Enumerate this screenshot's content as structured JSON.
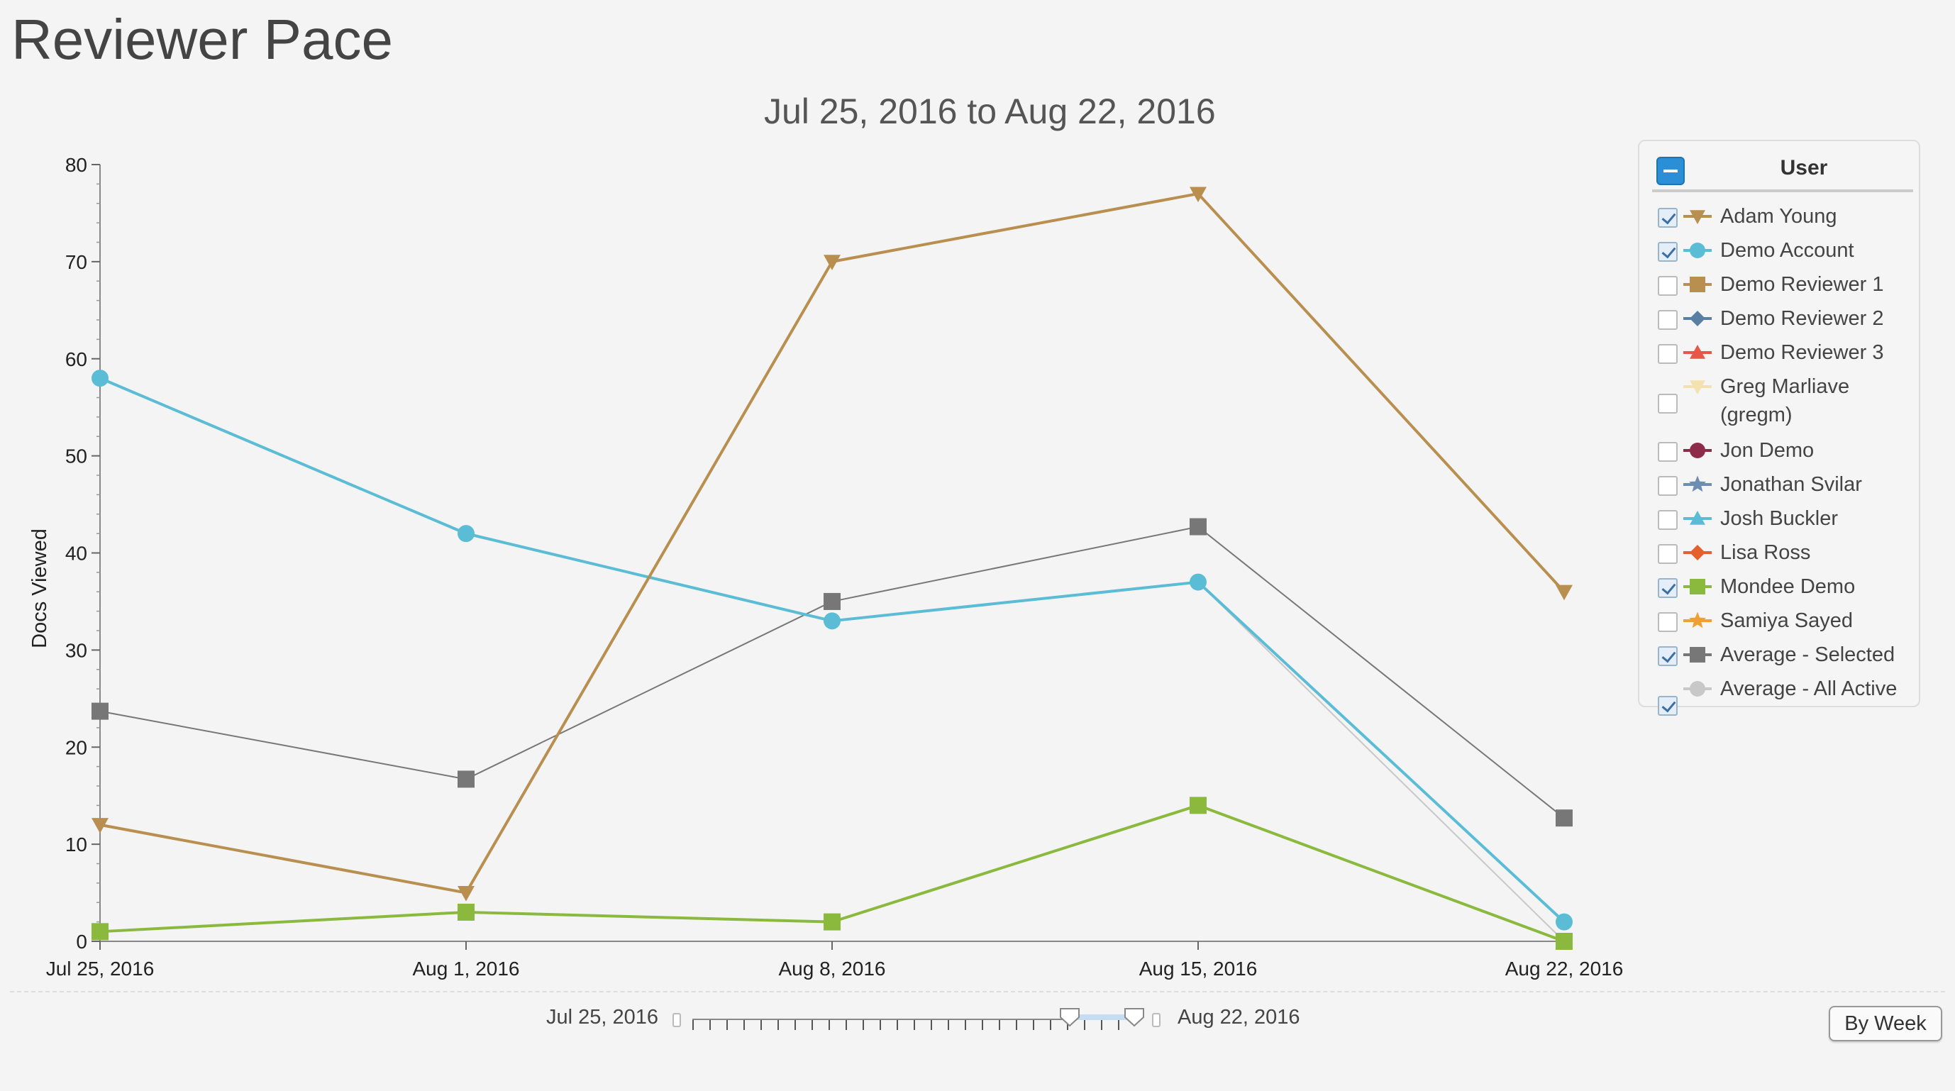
{
  "page": {
    "title": "Reviewer Pace"
  },
  "chart_data": {
    "type": "line",
    "title": "Jul 25, 2016 to Aug 22, 2016",
    "ylabel": "Docs Viewed",
    "xlabel": "",
    "categories": [
      "Jul 25, 2016",
      "Aug 1, 2016",
      "Aug 8, 2016",
      "Aug 15, 2016",
      "Aug 22, 2016"
    ],
    "ylim": [
      0,
      80
    ],
    "yticks": [
      0,
      10,
      20,
      30,
      40,
      50,
      60,
      70,
      80
    ],
    "series": [
      {
        "name": "Average - All Active",
        "color": "#c8c8c8",
        "marker": "circle",
        "values": [
          null,
          null,
          null,
          37,
          0
        ],
        "width": 2
      },
      {
        "name": "Average - Selected",
        "color": "#777777",
        "marker": "square",
        "values": [
          23.7,
          16.7,
          35,
          42.7,
          12.7
        ],
        "width": 2
      },
      {
        "name": "Demo Account",
        "color": "#5bbcd6",
        "marker": "circle",
        "values": [
          58,
          42,
          33,
          37,
          2
        ],
        "width": 4
      },
      {
        "name": "Mondee Demo",
        "color": "#8ab93e",
        "marker": "square",
        "values": [
          1,
          3,
          2,
          14,
          0
        ],
        "width": 4
      },
      {
        "name": "Adam Young",
        "color": "#b88f4f",
        "marker": "triangle-down",
        "values": [
          12,
          5,
          70,
          77,
          36
        ],
        "width": 4
      }
    ],
    "grid": false,
    "legend_position": "right"
  },
  "legend": {
    "header": "User",
    "items": [
      {
        "label": "Adam Young",
        "checked": true,
        "color": "#b88f4f",
        "marker": "triangle-down"
      },
      {
        "label": "Demo Account",
        "checked": true,
        "color": "#5bbcd6",
        "marker": "circle"
      },
      {
        "label": "Demo Reviewer 1",
        "checked": false,
        "color": "#b88f4f",
        "marker": "square"
      },
      {
        "label": "Demo Reviewer 2",
        "checked": false,
        "color": "#5a7fa5",
        "marker": "diamond"
      },
      {
        "label": "Demo Reviewer 3",
        "checked": false,
        "color": "#e8564a",
        "marker": "triangle-up"
      },
      {
        "label": "Greg Marliave (gregm)",
        "checked": false,
        "color": "#f3e2b0",
        "marker": "triangle-down"
      },
      {
        "label": "Jon Demo",
        "checked": false,
        "color": "#8e2a4a",
        "marker": "circle"
      },
      {
        "label": "Jonathan Svilar",
        "checked": false,
        "color": "#6e8db3",
        "marker": "star"
      },
      {
        "label": "Josh Buckler",
        "checked": false,
        "color": "#5bbcd6",
        "marker": "triangle-up"
      },
      {
        "label": "Lisa Ross",
        "checked": false,
        "color": "#e4602c",
        "marker": "diamond"
      },
      {
        "label": "Mondee Demo",
        "checked": true,
        "color": "#8ab93e",
        "marker": "square"
      },
      {
        "label": "Samiya Sayed",
        "checked": false,
        "color": "#f0a030",
        "marker": "star"
      },
      {
        "label": "Average - Selected",
        "checked": true,
        "color": "#777777",
        "marker": "square"
      },
      {
        "label": "Average - All Active",
        "checked": true,
        "color": "#c8c8c8",
        "marker": "circle"
      }
    ]
  },
  "range": {
    "start_label": "Jul 25, 2016",
    "end_label": "Aug 22, 2016"
  },
  "controls": {
    "by_week_label": "By Week"
  }
}
